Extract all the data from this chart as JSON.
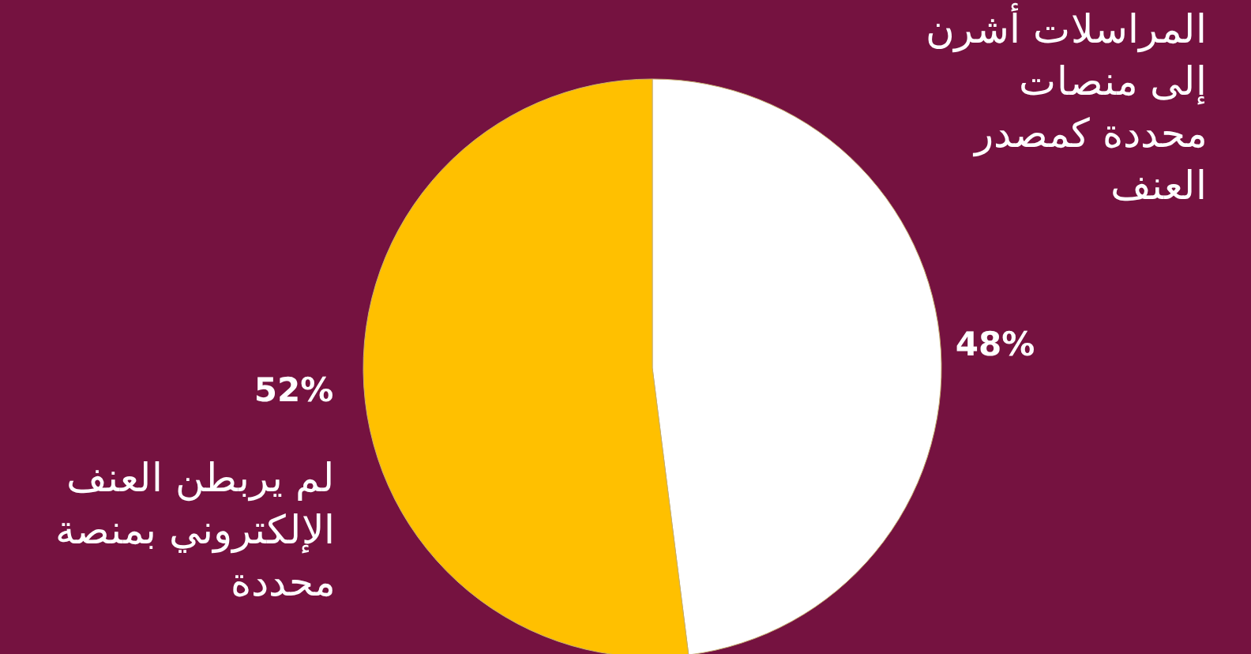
{
  "chart_data": {
    "type": "pie",
    "categories": [
      "المراسلات أشرن إلى منصات محددة كمصدر العنف",
      "لم يربطن العنف الإلكتروني بمنصة محددة"
    ],
    "values": [
      48,
      52
    ],
    "colors": [
      "#ffffff",
      "#ffc000"
    ],
    "value_labels": [
      "48%",
      "52%"
    ]
  }
}
